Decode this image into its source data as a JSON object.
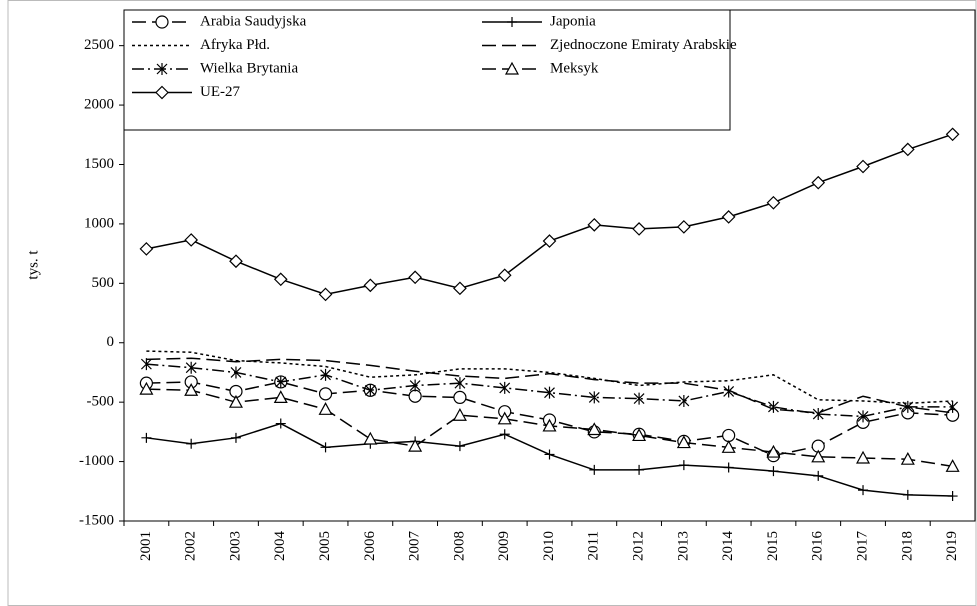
{
  "chart_data": {
    "type": "line",
    "y_label": "tys. t",
    "categories": [
      "2001",
      "2002",
      "2003",
      "2004",
      "2005",
      "2006",
      "2007",
      "2008",
      "2009",
      "2010",
      "2011",
      "2012",
      "2013",
      "2014",
      "2015",
      "2016",
      "2017",
      "2018",
      "2019"
    ],
    "ylim": [
      -1500,
      2800
    ],
    "yticks": [
      -1500,
      -1000,
      -500,
      0,
      500,
      1000,
      1500,
      2000,
      2500
    ],
    "grid": false,
    "legend": "top-left",
    "series": [
      {
        "name": "Arabia Saudyjska",
        "color": "#000000",
        "marker": "circle",
        "dash": "long-dash",
        "values": [
          -340,
          -330,
          -410,
          -330,
          -430,
          -400,
          -450,
          -460,
          -580,
          -650,
          -750,
          -770,
          -830,
          -780,
          -950,
          -870,
          -670,
          -590,
          -610
        ]
      },
      {
        "name": "Japonia",
        "color": "#000000",
        "marker": "plus",
        "dash": "solid",
        "values": [
          -800,
          -850,
          -800,
          -680,
          -880,
          -850,
          -830,
          -870,
          -770,
          -940,
          -1070,
          -1070,
          -1030,
          -1050,
          -1080,
          -1120,
          -1240,
          -1280,
          -1290
        ]
      },
      {
        "name": "Afryka Płd.",
        "color": "#000000",
        "marker": "none",
        "dash": "dotted",
        "values": [
          -70,
          -80,
          -150,
          -170,
          -200,
          -290,
          -270,
          -220,
          -220,
          -250,
          -300,
          -360,
          -330,
          -320,
          -270,
          -480,
          -490,
          -510,
          -490
        ]
      },
      {
        "name": "Zjednoczone Emiraty Arabskie",
        "color": "#000000",
        "marker": "none",
        "dash": "long-dash",
        "values": [
          -140,
          -130,
          -160,
          -140,
          -150,
          -190,
          -240,
          -280,
          -300,
          -260,
          -310,
          -340,
          -340,
          -400,
          -560,
          -590,
          -450,
          -540,
          -590
        ]
      },
      {
        "name": "Wielka Brytania",
        "color": "#000000",
        "marker": "asterisk",
        "dash": "dash-dot",
        "values": [
          -180,
          -210,
          -250,
          -330,
          -270,
          -400,
          -360,
          -340,
          -380,
          -420,
          -460,
          -470,
          -490,
          -410,
          -540,
          -600,
          -620,
          -540,
          -540
        ]
      },
      {
        "name": "Meksyk",
        "color": "#000000",
        "marker": "triangle",
        "dash": "long-dash",
        "values": [
          -390,
          -400,
          -500,
          -460,
          -560,
          -810,
          -870,
          -610,
          -640,
          -700,
          -730,
          -780,
          -840,
          -880,
          -920,
          -960,
          -970,
          -980,
          -1040
        ]
      },
      {
        "name": "UE-27",
        "color": "#000000",
        "marker": "diamond",
        "dash": "solid",
        "values": [
          790,
          865,
          686,
          534,
          407,
          483,
          551,
          458,
          568,
          856,
          992,
          958,
          975,
          1059,
          1178,
          1347,
          1483,
          1627,
          1754
        ]
      }
    ]
  }
}
